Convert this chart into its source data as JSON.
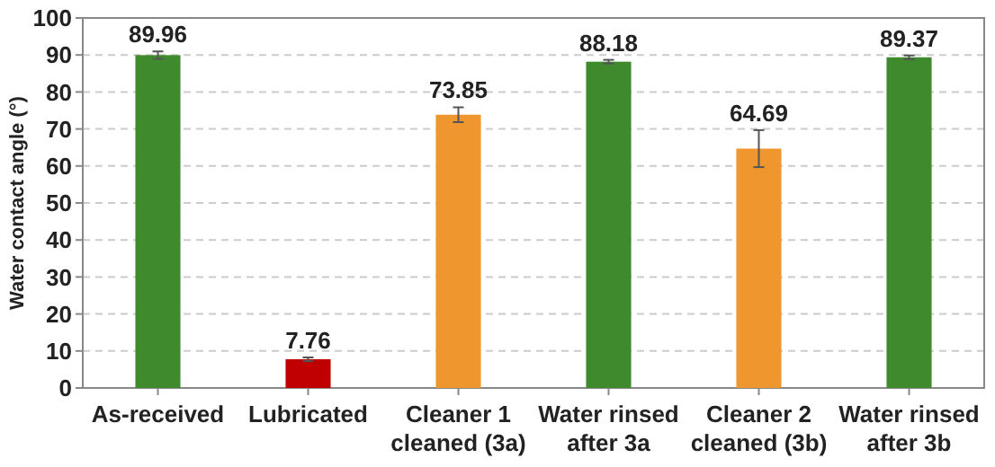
{
  "chart_data": {
    "type": "bar",
    "ylabel": "Water contact angle (°)",
    "categories": [
      "As-received",
      "Lubricated",
      "Cleaner 1\ncleaned (3a)",
      "Water rinsed\nafter 3a",
      "Cleaner 2\ncleaned (3b)",
      "Water rinsed\nafter 3b"
    ],
    "values": [
      89.96,
      7.76,
      73.85,
      88.18,
      64.69,
      89.37
    ],
    "colors": [
      "#3e8a2c",
      "#c00000",
      "#f0962e",
      "#3e8a2c",
      "#f0962e",
      "#3e8a2c"
    ],
    "errors": [
      1,
      0.5,
      2,
      0.5,
      5,
      0.5
    ],
    "data_labels": true,
    "ylim": [
      0,
      100
    ],
    "yticks": [
      0,
      10,
      20,
      30,
      40,
      50,
      60,
      70,
      80,
      90,
      100
    ],
    "grid": "y"
  }
}
